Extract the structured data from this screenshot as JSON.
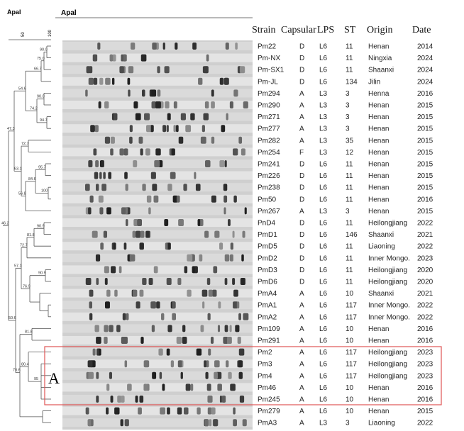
{
  "header": {
    "left_title": "Apal",
    "gel_title": "Apal",
    "scale": [
      "50",
      "100"
    ]
  },
  "tree_labels": [
    "90.0",
    "75.0",
    "66.7",
    "54.6",
    "90.0",
    "74.2",
    "94.7",
    "47.3",
    "72.7",
    "63.1",
    "95.7",
    "84.6",
    "100",
    "56.8",
    "46.2",
    "90.9",
    "81.8",
    "72.7",
    "57.1",
    "90.9",
    "76.9",
    "50.6",
    "81.8",
    "80.4",
    "95",
    "70.6"
  ],
  "table": {
    "columns": [
      "Strain",
      "Capsular",
      "LPS",
      "ST",
      "Origin",
      "Date"
    ],
    "rows": [
      [
        "Pm22",
        "D",
        "L6",
        "11",
        "Henan",
        "2014"
      ],
      [
        "Pm-NX",
        "D",
        "L6",
        "11",
        "Ningxia",
        "2024"
      ],
      [
        "Pm-SX1",
        "D",
        "L6",
        "11",
        "Shaanxi",
        "2024"
      ],
      [
        "Pm-JL",
        "D",
        "L6",
        "134",
        "Jilin",
        "2024"
      ],
      [
        "Pm294",
        "A",
        "L3",
        "3",
        "Henna",
        "2016"
      ],
      [
        "Pm290",
        "A",
        "L3",
        "3",
        "Henan",
        "2015"
      ],
      [
        "Pm271",
        "A",
        "L3",
        "3",
        "Henan",
        "2015"
      ],
      [
        "Pm277",
        "A",
        "L3",
        "3",
        "Henan",
        "2015"
      ],
      [
        "Pm282",
        "A",
        "L3",
        "35",
        "Henan",
        "2015"
      ],
      [
        "Pm254",
        "F",
        "L3",
        "12",
        "Henan",
        "2015"
      ],
      [
        "Pm241",
        "D",
        "L6",
        "11",
        "Henan",
        "2015"
      ],
      [
        "Pm226",
        "D",
        "L6",
        "11",
        "Henan",
        "2015"
      ],
      [
        "Pm238",
        "D",
        "L6",
        "11",
        "Henan",
        "2015"
      ],
      [
        "Pm50",
        "D",
        "L6",
        "11",
        "Henan",
        "2016"
      ],
      [
        "Pm267",
        "A",
        "L3",
        "3",
        "Henan",
        "2015"
      ],
      [
        "PnD4",
        "D",
        "L6",
        "11",
        "Heilongjiang",
        "2022"
      ],
      [
        "PmD1",
        "D",
        "L6",
        "146",
        "Shaanxi",
        "2021"
      ],
      [
        "PmD5",
        "D",
        "L6",
        "11",
        "Liaoning",
        "2022"
      ],
      [
        "PmD2",
        "D",
        "L6",
        "11",
        "Inner Mongo.",
        "2023"
      ],
      [
        "PmD3",
        "D",
        "L6",
        "11",
        "Heilongjiang",
        "2020"
      ],
      [
        "PmD6",
        "D",
        "L6",
        "11",
        "Heilongjiang",
        "2020"
      ],
      [
        "PmA4",
        "A",
        "L6",
        "10",
        "Shaanxi",
        "2021"
      ],
      [
        "PmA1",
        "A",
        "L6",
        "117",
        "Inner Mongo.",
        "2022"
      ],
      [
        "PmA2",
        "A",
        "L6",
        "117",
        "Inner Mongo.",
        "2022"
      ],
      [
        "Pm109",
        "A",
        "L6",
        "10",
        "Henan",
        "2016"
      ],
      [
        "Pm291",
        "A",
        "L6",
        "10",
        "Henan",
        "2016"
      ],
      [
        "Pm2",
        "A",
        "L6",
        "117",
        "Heilongjiang",
        "2023"
      ],
      [
        "Pm3",
        "A",
        "L6",
        "117",
        "Heilongjiang",
        "2023"
      ],
      [
        "Pm4",
        "A",
        "L6",
        "117",
        "Heilongjiang",
        "2023"
      ],
      [
        "Pm46",
        "A",
        "L6",
        "10",
        "Henan",
        "2016"
      ],
      [
        "Pm245",
        "A",
        "L6",
        "10",
        "Henan",
        "2016"
      ],
      [
        "Pm279",
        "A",
        "L6",
        "10",
        "Henan",
        "2015"
      ],
      [
        "PmA3",
        "A",
        "L3",
        "3",
        "Liaoning",
        "2022"
      ]
    ]
  },
  "highlight_label": "A"
}
